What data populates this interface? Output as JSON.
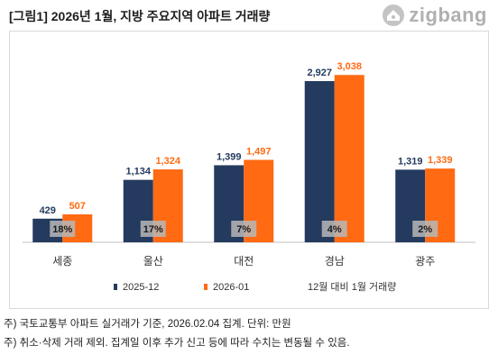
{
  "header": {
    "title": "[그림1] 2026년 1월, 지방 주요지역 아파트 거래량",
    "logo_text": "zigbang",
    "logo_icon": "zigbang-house-icon"
  },
  "footnotes": [
    "주) 국토교통부 아파트 실거래가 기준, 2026.02.04 집계. 단위: 만원",
    "주) 취소·삭제 거래 제외. 집계일 이후 추가 신고 등에 따라 수치는 변동될 수 있음."
  ],
  "colors": {
    "series1": "#243a5e",
    "series2": "#ff6a13",
    "series2_label": "#ff6a13",
    "series1_label": "#243a5e",
    "pct_box": "#b7b7b7",
    "axis": "#bfbfbf"
  },
  "chart_data": {
    "type": "bar",
    "categories": [
      "세종",
      "울산",
      "대전",
      "경남",
      "광주"
    ],
    "series": [
      {
        "name": "2025-12",
        "values": [
          429,
          1134,
          1399,
          2927,
          1319
        ],
        "labels": [
          "429",
          "1,134",
          "1,399",
          "2,927",
          "1,319"
        ]
      },
      {
        "name": "2026-01",
        "values": [
          507,
          1324,
          1497,
          3038,
          1339
        ],
        "labels": [
          "507",
          "1,324",
          "1,497",
          "3,038",
          "1,339"
        ]
      }
    ],
    "change_labels": [
      "18%",
      "17%",
      "7%",
      "4%",
      "2%"
    ],
    "change_legend": "12월 대비 1월 거래량",
    "ylim": [
      0,
      3500
    ],
    "grid": false,
    "legend_position": "bottom"
  }
}
